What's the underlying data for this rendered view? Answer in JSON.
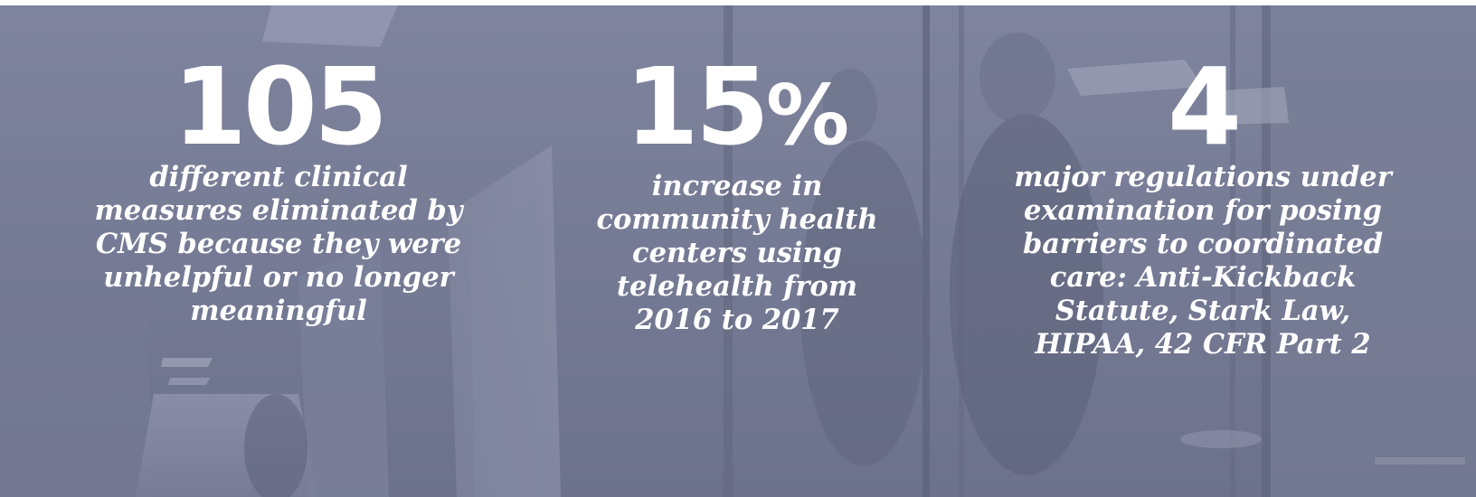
{
  "stats": [
    {
      "number": "105",
      "suffix": "",
      "description": "different clinical measures eliminated by CMS because they were unhelpful or no longer meaningful"
    },
    {
      "number": "15",
      "suffix": "%",
      "description": "increase in community health centers using telehealth from 2016 to 2017"
    },
    {
      "number": "4",
      "suffix": "",
      "description": "major regulations under examination for posing barriers to coordinated care: Anti-Kickback Statute, Stark Law, HIPAA, 42 CFR Part 2"
    }
  ],
  "colors": {
    "overlay": "#7c8099",
    "text": "#ffffff"
  }
}
